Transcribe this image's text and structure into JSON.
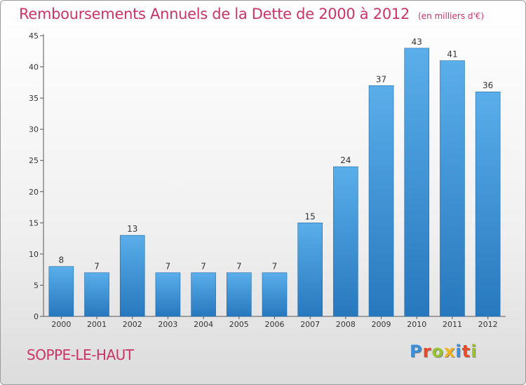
{
  "title": "Remboursements Annuels de la Dette de 2000 à 2012",
  "unit_note": "(en milliers d'€)",
  "commune": "SOPPE-LE-HAUT",
  "logo": [
    "P",
    "r",
    "o",
    "x",
    "i",
    "t",
    "i"
  ],
  "colors": {
    "title": "#cc3366",
    "bar_top": "#5aaeea",
    "bar_bottom": "#2778bd",
    "bar_edge": "#1f6aa8",
    "axis": "#555555",
    "grid": "#e2e2e2"
  },
  "chart_data": {
    "type": "bar",
    "categories": [
      "2000",
      "2001",
      "2002",
      "2003",
      "2004",
      "2005",
      "2006",
      "2007",
      "2008",
      "2009",
      "2010",
      "2011",
      "2012"
    ],
    "values": [
      8,
      7,
      13,
      7,
      7,
      7,
      7,
      15,
      24,
      37,
      43,
      41,
      36
    ],
    "ylim": [
      0,
      45
    ],
    "yticks": [
      0,
      5,
      10,
      15,
      20,
      25,
      30,
      35,
      40,
      45
    ],
    "title": "Remboursements Annuels de la Dette de 2000 à 2012",
    "xlabel": "",
    "ylabel": "",
    "data_labels": true,
    "grid": false
  }
}
